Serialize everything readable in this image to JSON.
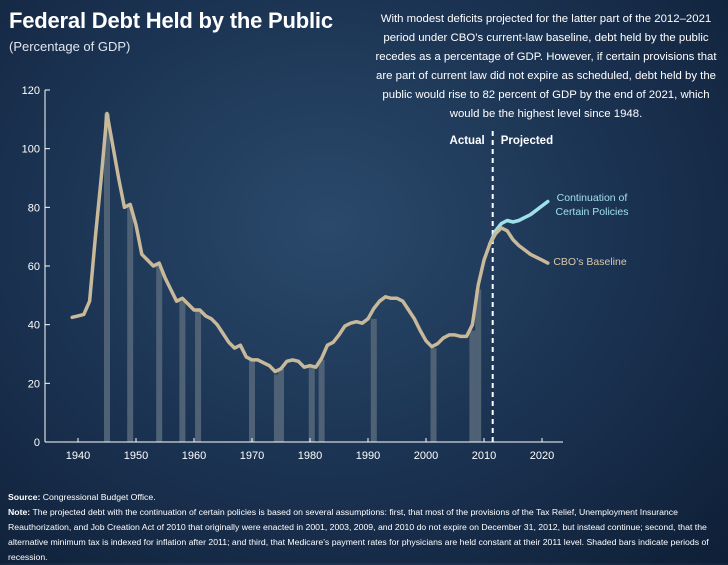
{
  "header": {
    "title": "Federal Debt Held by the Public",
    "subtitle": "(Percentage of GDP)"
  },
  "annotation": "With modest deficits projected for the latter part of the 2012–2021 period under CBO’s current-law baseline, debt held by the public recedes as a percentage of GDP. However, if certain provisions that are part of current law did not expire as scheduled, debt held by the public would rise to 82 percent of GDP by the end of 2021, which would be the highest level since 1948.",
  "footer": {
    "source_label": "Source:",
    "source_text": "Congressional Budget Office.",
    "note_label": "Note:",
    "note_text": "The projected debt with the continuation of certain policies is based on several assumptions: first, that most of the provisions of the Tax Relief, Unemployment Insurance Reauthorization, and Job Creation Act of 2010 that originally were enacted in 2001, 2003, 2009, and 2010 do not expire on December 31, 2012, but instead continue; second, that the alternative minimum tax is indexed for inflation after 2011; and third, that Medicare’s payment rates for physicians are held constant at their 2011 level. Shaded bars indicate periods of recession."
  },
  "colors": {
    "historical_line": "#c8b99a",
    "policies_line": "#9fe0ea",
    "policies_label": "#9fe0ea",
    "baseline_label": "#d8c9a8",
    "recession_bar": "#4f6275",
    "divider": "#ffffff"
  },
  "chart_data": {
    "type": "line",
    "title": "Federal Debt Held by the Public",
    "subtitle": "(Percentage of GDP)",
    "xlabel": "",
    "ylabel": "",
    "xlim": [
      1939,
      2022
    ],
    "ylim": [
      0,
      120
    ],
    "x_ticks": [
      1940,
      1950,
      1960,
      1970,
      1980,
      1990,
      2000,
      2010,
      2020
    ],
    "y_ticks": [
      0,
      20,
      40,
      60,
      80,
      100,
      120
    ],
    "grid": false,
    "divider_year": 2011.5,
    "divider_labels": {
      "left": "Actual",
      "right": "Projected"
    },
    "recessions": [
      {
        "year": 1945,
        "value": 112
      },
      {
        "year": 1949,
        "value": 80
      },
      {
        "year": 1954,
        "value": 60
      },
      {
        "year": 1958,
        "value": 48
      },
      {
        "year": 1960.7,
        "value": 45
      },
      {
        "year": 1970,
        "value": 28
      },
      {
        "year": 1974.3,
        "value": 23
      },
      {
        "year": 1975,
        "value": 25
      },
      {
        "year": 1980.3,
        "value": 26
      },
      {
        "year": 1982,
        "value": 28
      },
      {
        "year": 1991,
        "value": 42
      },
      {
        "year": 2001.3,
        "value": 32
      },
      {
        "year": 2008,
        "value": 38
      },
      {
        "year": 2009,
        "value": 52
      }
    ],
    "series": [
      {
        "name": "",
        "x": [
          1939,
          1940,
          1941,
          1942,
          1943,
          1944,
          1945,
          1946,
          1947,
          1948,
          1949,
          1950,
          1951,
          1952,
          1953,
          1954,
          1955,
          1956,
          1957,
          1958,
          1959,
          1960,
          1961,
          1962,
          1963,
          1964,
          1965,
          1966,
          1967,
          1968,
          1969,
          1970,
          1971,
          1972,
          1973,
          1974,
          1975,
          1976,
          1977,
          1978,
          1979,
          1980,
          1981,
          1982,
          1983,
          1984,
          1985,
          1986,
          1987,
          1988,
          1989,
          1990,
          1991,
          1992,
          1993,
          1994,
          1995,
          1996,
          1997,
          1998,
          1999,
          2000,
          2001,
          2002,
          2003,
          2004,
          2005,
          2006,
          2007,
          2008,
          2009,
          2010,
          2011
        ],
        "values": [
          42.5,
          43,
          43.5,
          48,
          70,
          90,
          112,
          101,
          90,
          80,
          81,
          74,
          64,
          62,
          60,
          61,
          56,
          52,
          48,
          49,
          47,
          45,
          45,
          43,
          42,
          40,
          37,
          34,
          32,
          33,
          29,
          28,
          28,
          27,
          26,
          24,
          25,
          27.5,
          28,
          27.5,
          25.5,
          26,
          25.5,
          28.5,
          33,
          34,
          36.5,
          39.5,
          40.5,
          41,
          40.5,
          42,
          45.5,
          48,
          49.5,
          49,
          49,
          48,
          45,
          42,
          38,
          34.5,
          32.5,
          33.5,
          35.5,
          36.5,
          36.5,
          36,
          36,
          40,
          53.5,
          62,
          67.5
        ]
      },
      {
        "name": "CBO’s Baseline",
        "x": [
          2011,
          2012,
          2013,
          2014,
          2015,
          2016,
          2017,
          2018,
          2019,
          2020,
          2021
        ],
        "values": [
          67.5,
          71,
          73,
          72,
          69,
          67,
          65.5,
          64,
          63,
          62,
          61
        ]
      },
      {
        "name": "Continuation of Certain Policies",
        "x": [
          2011,
          2012,
          2013,
          2014,
          2015,
          2016,
          2017,
          2018,
          2019,
          2020,
          2021
        ],
        "values": [
          67.5,
          72,
          74.5,
          75.5,
          75,
          75.5,
          76.5,
          77.5,
          79,
          80.5,
          82
        ]
      }
    ]
  }
}
